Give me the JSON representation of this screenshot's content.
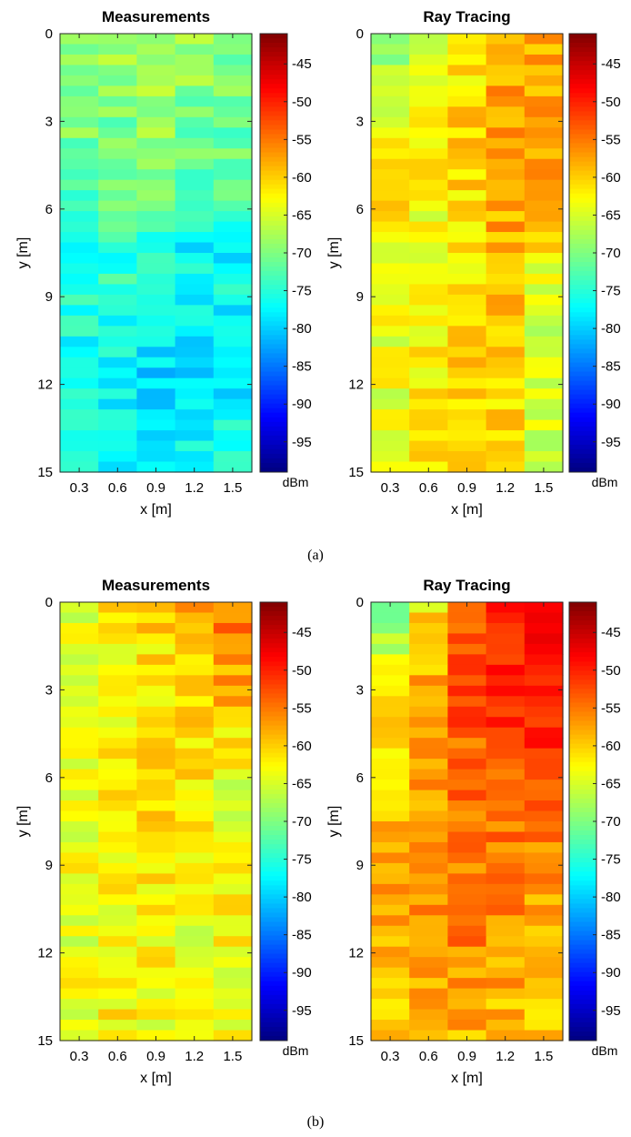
{
  "figure": {
    "panels": [
      {
        "caption": "(a)",
        "subplots": [
          {
            "title": "Measurements",
            "xlabel": "x [m]",
            "ylabel": "y [m]"
          },
          {
            "title": "Ray Tracing",
            "xlabel": "x [m]",
            "ylabel": "y [m]"
          }
        ]
      },
      {
        "caption": "(b)",
        "subplots": [
          {
            "title": "Measurements",
            "xlabel": "x [m]",
            "ylabel": "y [m]"
          },
          {
            "title": "Ray Tracing",
            "xlabel": "x [m]",
            "ylabel": "y [m]"
          }
        ]
      }
    ]
  },
  "chart_data": [
    {
      "type": "heatmap",
      "panel": "(a)",
      "title": "Measurements",
      "xlabel": "x [m]",
      "ylabel": "y [m]",
      "x_ticks": [
        "0.3",
        "0.6",
        "0.9",
        "1.2",
        "1.5"
      ],
      "y_ticks": [
        "0",
        "3",
        "6",
        "9",
        "12",
        "15"
      ],
      "xlim": [
        0.15,
        1.65
      ],
      "ylim": [
        0,
        15
      ],
      "y_direction": "down",
      "colormap": "jet",
      "colorbar_label": "dBm",
      "colorbar_ticks": [
        "-45",
        "-50",
        "-55",
        "-60",
        "-65",
        "-70",
        "-75",
        "-80",
        "-85",
        "-90",
        "-95"
      ],
      "clim": [
        -99,
        -41
      ],
      "x_centers": [
        0.3,
        0.6,
        0.9,
        1.2,
        1.5
      ],
      "y_keypoints": [
        0,
        3,
        6,
        7,
        9,
        12,
        15
      ],
      "value_keypoints": [
        [
          -69,
          -68,
          -68,
          -69,
          -70
        ],
        [
          -70,
          -70,
          -69,
          -70,
          -71
        ],
        [
          -72,
          -72,
          -72,
          -73,
          -73
        ],
        [
          -75,
          -75,
          -77,
          -77,
          -78
        ],
        [
          -76,
          -75,
          -76,
          -77,
          -77
        ],
        [
          -77,
          -78,
          -80,
          -79,
          -78
        ],
        [
          -76,
          -76,
          -76,
          -76,
          -76
        ]
      ]
    },
    {
      "type": "heatmap",
      "panel": "(a)",
      "title": "Ray Tracing",
      "xlabel": "x [m]",
      "ylabel": "y [m]",
      "x_ticks": [
        "0.3",
        "0.6",
        "0.9",
        "1.2",
        "1.5"
      ],
      "y_ticks": [
        "0",
        "3",
        "6",
        "9",
        "12",
        "15"
      ],
      "xlim": [
        0.15,
        1.65
      ],
      "ylim": [
        0,
        15
      ],
      "y_direction": "down",
      "colormap": "jet",
      "colorbar_label": "dBm",
      "colorbar_ticks": [
        "-45",
        "-50",
        "-55",
        "-60",
        "-65",
        "-70",
        "-75",
        "-80",
        "-85",
        "-90",
        "-95"
      ],
      "clim": [
        -99,
        -41
      ],
      "x_centers": [
        0.3,
        0.6,
        0.9,
        1.2,
        1.5
      ],
      "y_keypoints": [
        0,
        3,
        6,
        9,
        12,
        15
      ],
      "value_keypoints": [
        [
          -71,
          -67,
          -62,
          -57,
          -58
        ],
        [
          -63,
          -60,
          -60,
          -58,
          -57
        ],
        [
          -62,
          -63,
          -61,
          -58,
          -57
        ],
        [
          -63,
          -64,
          -62,
          -59,
          -66
        ],
        [
          -64,
          -62,
          -60,
          -60,
          -66
        ],
        [
          -63,
          -62,
          -61,
          -60,
          -65
        ]
      ]
    },
    {
      "type": "heatmap",
      "panel": "(b)",
      "title": "Measurements",
      "xlabel": "x [m]",
      "ylabel": "y [m]",
      "x_ticks": [
        "0.3",
        "0.6",
        "0.9",
        "1.2",
        "1.5"
      ],
      "y_ticks": [
        "0",
        "3",
        "6",
        "9",
        "12",
        "15"
      ],
      "xlim": [
        0.15,
        1.65
      ],
      "ylim": [
        0,
        15
      ],
      "y_direction": "down",
      "colormap": "jet",
      "colorbar_label": "dBm",
      "colorbar_ticks": [
        "-45",
        "-50",
        "-55",
        "-60",
        "-65",
        "-70",
        "-75",
        "-80",
        "-85",
        "-90",
        "-95"
      ],
      "clim": [
        -99,
        -41
      ],
      "x_centers": [
        0.3,
        0.6,
        0.9,
        1.2,
        1.5
      ],
      "y_keypoints": [
        0,
        3,
        6,
        9,
        12,
        15
      ],
      "value_keypoints": [
        [
          -64,
          -62,
          -60,
          -58,
          -55
        ],
        [
          -64,
          -63,
          -62,
          -60,
          -58
        ],
        [
          -64,
          -62,
          -61,
          -62,
          -64
        ],
        [
          -63,
          -62,
          -62,
          -63,
          -63
        ],
        [
          -64,
          -63,
          -63,
          -64,
          -63
        ],
        [
          -63,
          -62,
          -63,
          -64,
          -64
        ]
      ]
    },
    {
      "type": "heatmap",
      "panel": "(b)",
      "title": "Ray Tracing",
      "xlabel": "x [m]",
      "ylabel": "y [m]",
      "x_ticks": [
        "0.3",
        "0.6",
        "0.9",
        "1.2",
        "1.5"
      ],
      "y_ticks": [
        "0",
        "3",
        "6",
        "9",
        "12",
        "15"
      ],
      "xlim": [
        0.15,
        1.65
      ],
      "ylim": [
        0,
        15
      ],
      "y_direction": "down",
      "colormap": "jet",
      "colorbar_label": "dBm",
      "colorbar_ticks": [
        "-45",
        "-50",
        "-55",
        "-60",
        "-65",
        "-70",
        "-75",
        "-80",
        "-85",
        "-90",
        "-95"
      ],
      "clim": [
        -99,
        -41
      ],
      "x_centers": [
        0.3,
        0.6,
        0.9,
        1.2,
        1.5
      ],
      "y_keypoints": [
        0,
        3,
        6,
        9,
        12,
        15
      ],
      "value_keypoints": [
        [
          -70,
          -62,
          -55,
          -50,
          -48
        ],
        [
          -62,
          -58,
          -53,
          -51,
          -51
        ],
        [
          -60,
          -57,
          -54,
          -53,
          -52
        ],
        [
          -58,
          -57,
          -55,
          -55,
          -57
        ],
        [
          -58,
          -57,
          -56,
          -57,
          -58
        ],
        [
          -60,
          -59,
          -58,
          -59,
          -59
        ]
      ]
    }
  ]
}
